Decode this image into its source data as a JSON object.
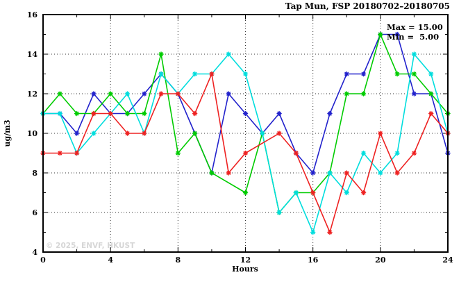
{
  "title": "Tap Mun, FSP 20180702–20180705",
  "legend": {
    "max": "Max = 15.00",
    "min": "Min =  5.00"
  },
  "watermark": "© 2025, ENVF, HKUST",
  "colors": {
    "axis": "#000000",
    "grid": "#333333",
    "watermark": "#d6d6d6"
  },
  "chart_data": {
    "type": "line",
    "title": "Tap Mun, FSP 20180702–20180705",
    "xlabel": "Hours",
    "ylabel": "ug/m3",
    "x_range": [
      0,
      24
    ],
    "y_range": [
      4,
      16
    ],
    "x_major_ticks": [
      0,
      4,
      8,
      12,
      16,
      20,
      24
    ],
    "x_minor_ticks": [
      2,
      6,
      10,
      14,
      18,
      22
    ],
    "y_major_ticks": [
      4,
      6,
      8,
      10,
      12,
      14,
      16
    ],
    "y_minor_ticks": [
      5,
      7,
      9,
      11,
      13,
      15
    ],
    "grid": true,
    "legend_position": "top-right-inside",
    "annotations": {
      "max": 15.0,
      "min": 5.0
    },
    "x": [
      0,
      1,
      2,
      3,
      4,
      5,
      6,
      7,
      8,
      9,
      10,
      11,
      12,
      13,
      14,
      15,
      16,
      17,
      18,
      19,
      20,
      21,
      22,
      23,
      24
    ],
    "series": [
      {
        "name": "series-blue",
        "color": "#2222cc",
        "values": [
          11,
          11,
          10,
          12,
          11,
          11,
          12,
          13,
          12,
          10,
          8,
          12,
          11,
          10,
          11,
          9,
          8,
          11,
          13,
          13,
          15,
          15,
          12,
          12,
          9
        ]
      },
      {
        "name": "series-green",
        "color": "#00cc00",
        "values": [
          11,
          12,
          11,
          11,
          12,
          11,
          11,
          14,
          9,
          10,
          8,
          null,
          7,
          10,
          6,
          7,
          7,
          8,
          12,
          12,
          15,
          13,
          13,
          12,
          11
        ]
      },
      {
        "name": "series-cyan",
        "color": "#00dddd",
        "values": [
          11,
          11,
          9,
          10,
          11,
          12,
          10,
          13,
          12,
          13,
          13,
          14,
          13,
          10,
          6,
          7,
          5,
          8,
          7,
          9,
          8,
          9,
          14,
          13,
          10
        ]
      },
      {
        "name": "series-red",
        "color": "#ee2222",
        "values": [
          9,
          9,
          9,
          11,
          11,
          10,
          10,
          12,
          12,
          11,
          13,
          8,
          9,
          null,
          10,
          9,
          7,
          5,
          8,
          7,
          10,
          8,
          9,
          11,
          10
        ]
      }
    ]
  }
}
